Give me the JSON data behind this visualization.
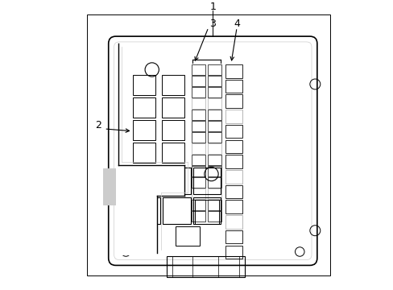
{
  "bg_color": "#ffffff",
  "line_color": "#000000",
  "gray_color": "#aaaaaa",
  "light_gray": "#cccccc",
  "fig_width": 4.89,
  "fig_height": 3.6,
  "dpi": 100
}
